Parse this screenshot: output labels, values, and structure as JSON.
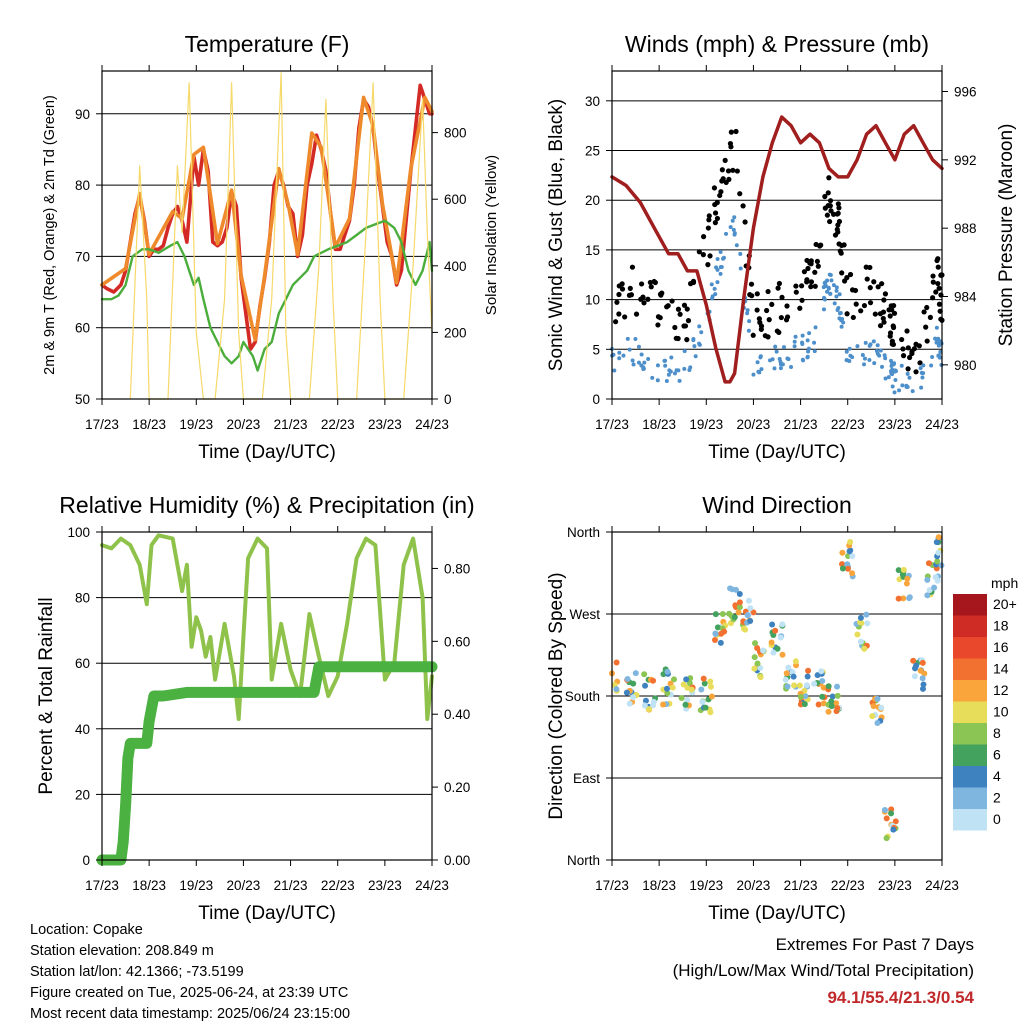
{
  "station": {
    "location": "Location: Copake",
    "elevation": "Station elevation: 208.849 m",
    "latlon": "Station lat/lon: 42.1366; -73.5199",
    "created": "Figure created on Tue, 2025-06-24, at 23:39 UTC",
    "latest": "Most recent data timestamp: 2025/06/24 23:15:00"
  },
  "extremes": {
    "title": "Extremes For Past 7 Days",
    "subtitle": "(High/Low/Max Wind/Total Precipitation)",
    "values": "94.1/55.4/21.3/0.54",
    "color": "#c0282a"
  },
  "chart_data": [
    {
      "type": "line",
      "title": "Temperature (F)",
      "xlabel": "Time (Day/UTC)",
      "ylabel": "2m & 9m T (Red, Orange) & 2m Td (Green)",
      "ylabel_right": "Solar Insolation (Yellow)",
      "x_ticks": [
        "17/23",
        "18/23",
        "19/23",
        "20/23",
        "21/23",
        "22/23",
        "23/23",
        "24/23"
      ],
      "xlim": [
        0,
        7
      ],
      "ylim": [
        50,
        96
      ],
      "y_ticks": [
        50,
        60,
        70,
        80,
        90
      ],
      "ylim_right": [
        0,
        985
      ],
      "y_ticks_right": [
        0,
        200,
        400,
        600,
        800
      ],
      "grid": "horizontal",
      "series": [
        {
          "color": "#d42a26",
          "x": [
            0,
            0.1,
            0.25,
            0.4,
            0.5,
            0.6,
            0.7,
            0.8,
            0.9,
            1.0,
            1.1,
            1.2,
            1.3,
            1.4,
            1.5,
            1.6,
            1.7,
            1.8,
            1.95,
            2.05,
            2.15,
            2.25,
            2.35,
            2.45,
            2.55,
            2.65,
            2.75,
            2.85,
            2.95,
            3.05,
            3.15,
            3.25,
            3.35,
            3.45,
            3.55,
            3.65,
            3.75,
            3.85,
            3.95,
            4.05,
            4.15,
            4.25,
            4.35,
            4.45,
            4.55,
            4.65,
            4.75,
            4.85,
            4.95,
            5.05,
            5.15,
            5.25,
            5.35,
            5.45,
            5.55,
            5.65,
            5.75,
            5.85,
            5.95,
            6.05,
            6.15,
            6.25,
            6.35,
            6.45,
            6.55,
            6.65,
            6.75,
            6.85,
            6.95,
            7.0
          ],
          "y": [
            66,
            65.5,
            65,
            66,
            68,
            72,
            76,
            78.5,
            75,
            70,
            71,
            71,
            71.5,
            74,
            76,
            77,
            75,
            72,
            84,
            80,
            85,
            82,
            72,
            71.5,
            72,
            74,
            79,
            77,
            67,
            62,
            57,
            58,
            63,
            67,
            72,
            80,
            82,
            80,
            77,
            76,
            70,
            73,
            80,
            83,
            87,
            85,
            82,
            76,
            71,
            71,
            73,
            75,
            80,
            88,
            92,
            91,
            88,
            82,
            77,
            72,
            70,
            66,
            68,
            75,
            82,
            88,
            94,
            92,
            90,
            90
          ]
        },
        {
          "color": "#ef8a2c",
          "x": [
            0,
            0.5,
            0.8,
            1.0,
            1.5,
            1.7,
            1.95,
            2.15,
            2.45,
            2.75,
            2.95,
            3.25,
            3.45,
            3.75,
            3.95,
            4.15,
            4.45,
            4.65,
            4.95,
            5.25,
            5.55,
            5.75,
            5.95,
            6.25,
            6.55,
            6.85,
            7.0
          ],
          "y": [
            66,
            68.3,
            78.8,
            70.3,
            76.3,
            75.3,
            84.3,
            85.3,
            71.8,
            79.3,
            67.3,
            58.3,
            67.3,
            82.3,
            77.3,
            70.3,
            87.3,
            85.3,
            71.3,
            75.3,
            92.3,
            88.3,
            77.3,
            66.3,
            82.3,
            92.3,
            90.3
          ]
        },
        {
          "color": "#4bad3b",
          "x": [
            0,
            0.2,
            0.35,
            0.5,
            0.65,
            0.85,
            1.0,
            1.2,
            1.45,
            1.6,
            1.75,
            1.85,
            1.95,
            2.05,
            2.15,
            2.3,
            2.45,
            2.6,
            2.75,
            2.9,
            3.0,
            3.1,
            3.2,
            3.3,
            3.45,
            3.6,
            3.75,
            3.9,
            4.05,
            4.2,
            4.35,
            4.5,
            4.65,
            4.8,
            5.0,
            5.2,
            5.4,
            5.6,
            5.8,
            6.0,
            6.2,
            6.35,
            6.5,
            6.65,
            6.8,
            6.95,
            7.0
          ],
          "y": [
            64,
            64,
            64.5,
            66,
            70,
            71,
            71,
            70.5,
            71.5,
            72,
            70,
            68,
            66,
            67,
            64,
            60,
            58,
            56,
            55,
            56,
            58,
            57,
            56,
            54,
            57,
            58,
            62,
            64,
            66,
            67,
            68,
            70,
            70.5,
            71,
            71.5,
            72,
            73,
            74,
            74.5,
            75,
            74,
            72,
            68,
            66,
            68,
            72,
            68
          ]
        },
        {
          "color": "#f6d96a",
          "x": [
            0.6,
            0.8,
            0.95,
            1.0,
            1.15,
            1.4,
            1.6,
            1.7,
            1.85,
            2.0,
            2.15,
            2.4,
            2.6,
            2.75,
            2.9,
            3.0,
            3.15,
            3.4,
            3.6,
            3.8,
            3.9,
            4.0,
            4.2,
            4.4,
            4.6,
            4.75,
            4.9,
            5.0,
            5.2,
            5.4,
            5.6,
            5.75,
            5.9,
            6.0,
            6.2,
            6.4,
            6.6,
            6.8,
            6.9,
            7.0
          ],
          "y_right": [
            0,
            700,
            300,
            0,
            0,
            0,
            700,
            500,
            950,
            200,
            0,
            0,
            300,
            950,
            200,
            0,
            0,
            0,
            300,
            980,
            200,
            0,
            0,
            0,
            400,
            900,
            300,
            0,
            0,
            0,
            500,
            950,
            300,
            0,
            0,
            0,
            400,
            900,
            500,
            200
          ]
        }
      ]
    },
    {
      "type": "scatter",
      "title": "Winds (mph) & Pressure (mb)",
      "xlabel": "Time (Day/UTC)",
      "ylabel": "Sonic Wind & Gust (Blue, Black)",
      "ylabel_right": "Station Pressure (Maroon)",
      "x_ticks": [
        "17/23",
        "18/23",
        "19/23",
        "20/23",
        "21/23",
        "22/23",
        "23/23",
        "24/23"
      ],
      "xlim": [
        0,
        7
      ],
      "ylim": [
        0,
        33
      ],
      "y_ticks": [
        0,
        5,
        10,
        15,
        20,
        25,
        30
      ],
      "ylim_right": [
        978,
        997.2
      ],
      "y_ticks_right": [
        980,
        984,
        988,
        992,
        996
      ],
      "grid": "horizontal",
      "series": [
        {
          "color": "#000000",
          "type": "scatter",
          "x": [
            0,
            0.5,
            1.0,
            1.5,
            2.0,
            2.3,
            2.6,
            3.0,
            3.5,
            4.0,
            4.3,
            4.6,
            4.8,
            5.0,
            5.5,
            5.9,
            6.0,
            6.5,
            6.9,
            7.0
          ],
          "y": [
            10,
            11,
            9,
            7,
            15,
            22,
            26,
            8,
            9,
            11,
            13,
            20,
            18,
            10,
            11,
            8,
            7,
            4,
            12,
            10
          ]
        },
        {
          "color": "#4d8fcb",
          "type": "scatter",
          "x": [
            0,
            0.5,
            1.0,
            1.5,
            2.0,
            2.3,
            2.6,
            3.0,
            3.5,
            4.0,
            4.3,
            4.6,
            4.8,
            5.0,
            5.5,
            5.9,
            6.0,
            6.5,
            6.9,
            7.0
          ],
          "y": [
            4,
            5,
            3,
            3,
            8,
            14,
            18,
            3,
            4,
            5,
            6,
            12,
            10,
            4,
            5,
            3,
            2,
            2,
            6,
            4
          ]
        },
        {
          "color": "#a01e1e",
          "type": "line",
          "x": [
            0,
            0.3,
            0.6,
            0.9,
            1.2,
            1.4,
            1.6,
            1.8,
            2.0,
            2.2,
            2.4,
            2.5,
            2.6,
            2.8,
            3.0,
            3.2,
            3.4,
            3.6,
            3.8,
            4.0,
            4.2,
            4.4,
            4.6,
            4.8,
            5.0,
            5.2,
            5.4,
            5.6,
            5.8,
            6.0,
            6.2,
            6.4,
            6.6,
            6.8,
            7.0
          ],
          "y_right": [
            991,
            990.5,
            989.5,
            988,
            986.5,
            986.5,
            985.5,
            985.5,
            983.5,
            981,
            979,
            979,
            979.5,
            984,
            988,
            991,
            993,
            994.5,
            994,
            993,
            993.5,
            993,
            991.5,
            991,
            991,
            992,
            993.5,
            994,
            993,
            992,
            993.5,
            994,
            993,
            992,
            991.5
          ]
        }
      ]
    },
    {
      "type": "line",
      "title": "Relative Humidity (%) & Precipitation (in)",
      "xlabel": "Time (Day/UTC)",
      "ylabel": "Percent & Total Rainfall",
      "x_ticks": [
        "17/23",
        "18/23",
        "19/23",
        "20/23",
        "21/23",
        "22/23",
        "23/23",
        "24/23"
      ],
      "xlim": [
        0,
        7
      ],
      "ylim": [
        0,
        100
      ],
      "y_ticks": [
        0,
        20,
        40,
        60,
        80,
        100
      ],
      "ylim_right": [
        0,
        0.9
      ],
      "y_ticks_right": [
        "0.00",
        "0.20",
        "0.40",
        "0.60",
        "0.80"
      ],
      "grid": "horizontal",
      "series": [
        {
          "color": "#8fc24b",
          "x": [
            0,
            0.2,
            0.4,
            0.6,
            0.8,
            0.95,
            1.05,
            1.2,
            1.5,
            1.7,
            1.8,
            1.9,
            2.0,
            2.1,
            2.2,
            2.3,
            2.4,
            2.6,
            2.8,
            2.9,
            3.0,
            3.1,
            3.3,
            3.5,
            3.6,
            3.8,
            4.0,
            4.2,
            4.4,
            4.6,
            4.8,
            5.0,
            5.2,
            5.4,
            5.6,
            5.8,
            6.0,
            6.2,
            6.4,
            6.6,
            6.8,
            6.9,
            7.0
          ],
          "y": [
            96,
            95,
            98,
            96,
            90,
            78,
            96,
            99,
            98,
            82,
            90,
            65,
            74,
            70,
            62,
            68,
            55,
            72,
            56,
            43,
            68,
            92,
            98,
            95,
            55,
            72,
            58,
            50,
            75,
            62,
            50,
            56,
            72,
            92,
            98,
            96,
            55,
            60,
            90,
            98,
            80,
            43,
            56
          ]
        },
        {
          "color": "#4bb141",
          "x": [
            0,
            0.4,
            0.45,
            0.5,
            0.55,
            0.6,
            0.7,
            0.95,
            1.0,
            1.1,
            1.3,
            1.8,
            2.5,
            3.0,
            3.3,
            4.5,
            4.6,
            5.0,
            6.0,
            6.5,
            7.0
          ],
          "y_right": [
            0,
            0,
            0.05,
            0.15,
            0.28,
            0.32,
            0.32,
            0.32,
            0.38,
            0.45,
            0.45,
            0.46,
            0.46,
            0.46,
            0.46,
            0.46,
            0.53,
            0.53,
            0.53,
            0.53,
            0.53
          ]
        }
      ]
    },
    {
      "type": "scatter",
      "title": "Wind Direction",
      "xlabel": "Time (Day/UTC)",
      "ylabel": "Direction (Colored By Speed)",
      "x_ticks": [
        "17/23",
        "18/23",
        "19/23",
        "20/23",
        "21/23",
        "22/23",
        "23/23",
        "24/23"
      ],
      "xlim": [
        0,
        7
      ],
      "ylim": [
        0,
        360
      ],
      "y_tick_labels": [
        "North",
        "East",
        "South",
        "West",
        "North"
      ],
      "y_ticks": [
        0,
        90,
        180,
        270,
        360
      ],
      "grid": "horizontal",
      "legend": {
        "title": "mph",
        "labels": [
          "20+",
          "18",
          "16",
          "14",
          "12",
          "10",
          "8",
          "6",
          "4",
          "2",
          "0"
        ],
        "colors": [
          "#a6161d",
          "#cf2c26",
          "#e9482c",
          "#f37130",
          "#f9a53b",
          "#e8dd5b",
          "#8bc553",
          "#43a25d",
          "#3f82c0",
          "#7fb6e0",
          "#bfe2f5"
        ]
      },
      "series": [
        {
          "color": "#e9482c",
          "x": [
            0,
            0.4,
            0.8,
            1.2,
            1.6,
            2.0,
            2.3,
            2.6,
            2.9,
            3.1,
            3.5,
            3.8,
            4.1,
            4.4,
            4.7,
            5.0,
            5.3,
            5.6,
            5.9,
            6.2,
            6.5,
            6.8,
            7.0
          ],
          "y": [
            200,
            190,
            185,
            190,
            185,
            180,
            255,
            280,
            270,
            220,
            240,
            200,
            190,
            190,
            180,
            330,
            250,
            170,
            40,
            300,
            200,
            310,
            340
          ]
        }
      ]
    }
  ]
}
